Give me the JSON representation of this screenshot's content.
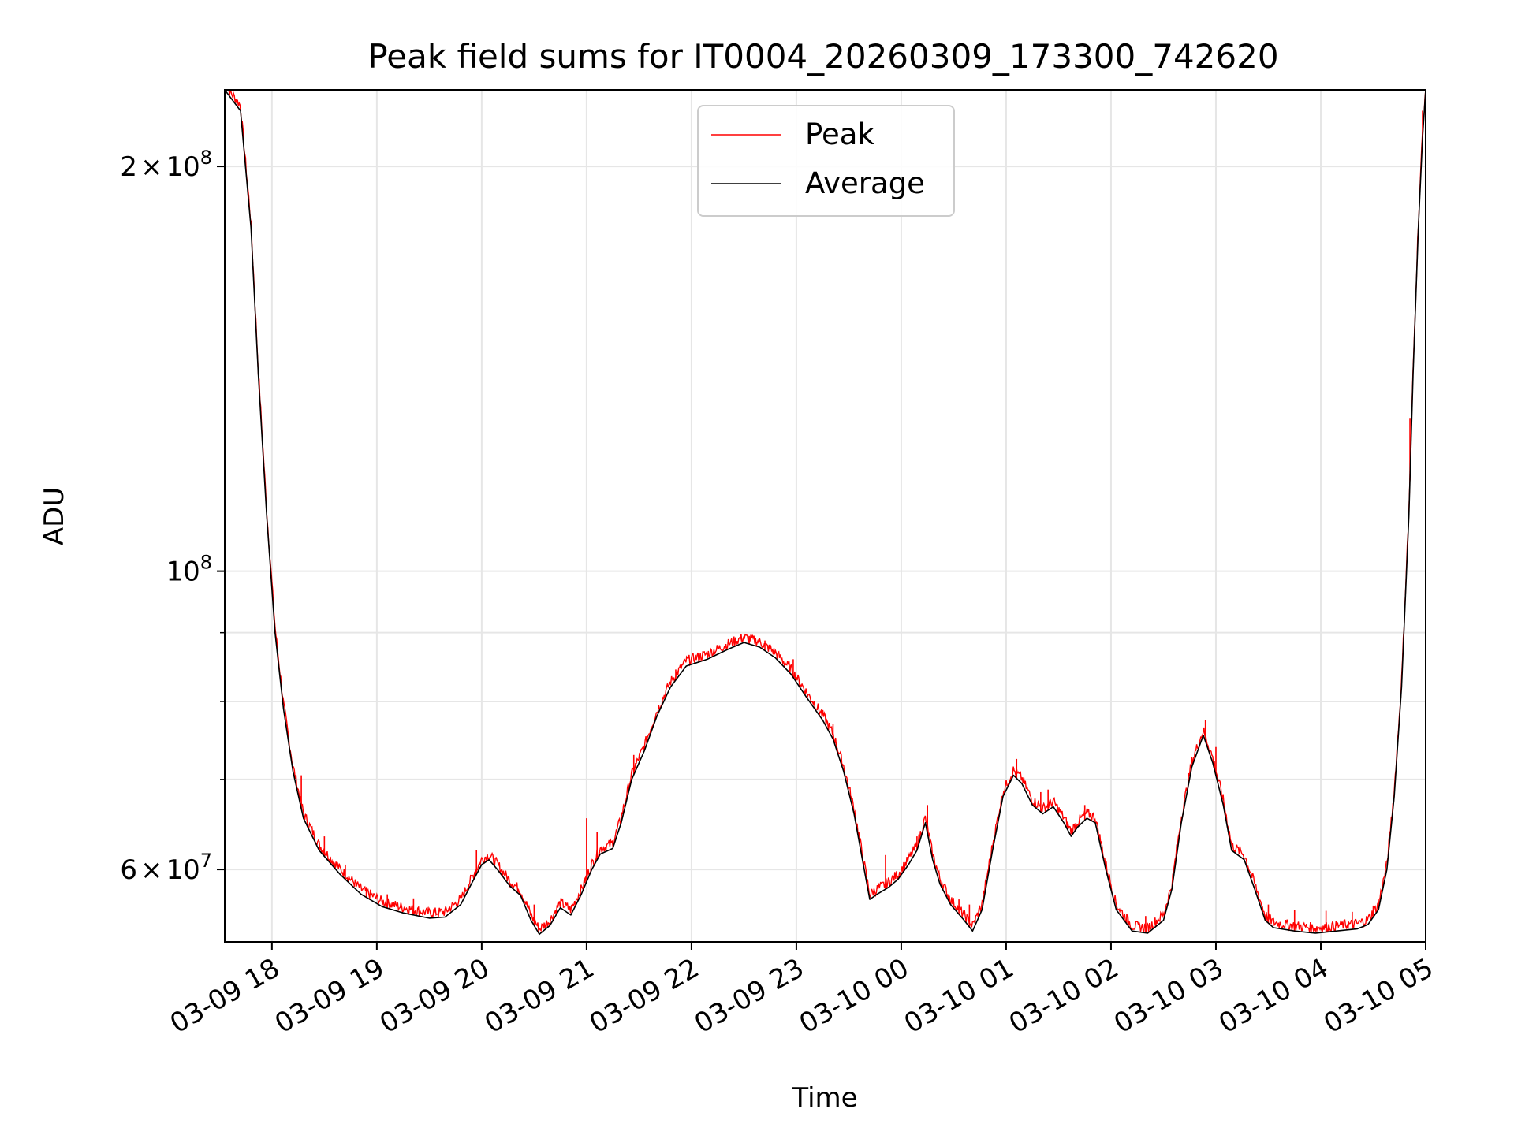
{
  "chart_data": {
    "type": "line",
    "title": "Peak field sums for IT0004_20260309_173300_742620",
    "xlabel": "Time",
    "ylabel": "ADU",
    "yscale": "log",
    "ylim": [
      53000000,
      228000000
    ],
    "x_unit": "hours since 03-09 17:33",
    "xlim": [
      0,
      11.45
    ],
    "grid": true,
    "legend": {
      "position": "upper-center",
      "entries": [
        "Peak",
        "Average"
      ]
    },
    "x_ticks": [
      {
        "value": 0.45,
        "label": "03-09 18"
      },
      {
        "value": 1.45,
        "label": "03-09 19"
      },
      {
        "value": 2.45,
        "label": "03-09 20"
      },
      {
        "value": 3.45,
        "label": "03-09 21"
      },
      {
        "value": 4.45,
        "label": "03-09 22"
      },
      {
        "value": 5.45,
        "label": "03-09 23"
      },
      {
        "value": 6.45,
        "label": "03-10 00"
      },
      {
        "value": 7.45,
        "label": "03-10 01"
      },
      {
        "value": 8.45,
        "label": "03-10 02"
      },
      {
        "value": 9.45,
        "label": "03-10 03"
      },
      {
        "value": 10.45,
        "label": "03-10 04"
      },
      {
        "value": 11.45,
        "label": "03-10 05"
      }
    ],
    "y_ticks_major": [
      {
        "value": 60000000,
        "base": "6",
        "times": "×",
        "exp_base": "10",
        "exp": "7"
      },
      {
        "value": 100000000,
        "base": "",
        "times": "",
        "exp_base": "10",
        "exp": "8"
      },
      {
        "value": 200000000,
        "base": "2",
        "times": "×",
        "exp_base": "10",
        "exp": "8"
      }
    ],
    "y_ticks_minor": [
      70000000,
      80000000,
      90000000
    ],
    "series": [
      {
        "name": "Average",
        "color": "#000000",
        "points": [
          [
            0.0,
            228000000
          ],
          [
            0.15,
            220000000
          ],
          [
            0.25,
            180000000
          ],
          [
            0.32,
            140000000
          ],
          [
            0.4,
            110000000
          ],
          [
            0.48,
            90000000
          ],
          [
            0.56,
            79000000
          ],
          [
            0.65,
            71000000
          ],
          [
            0.75,
            65500000
          ],
          [
            0.9,
            62000000
          ],
          [
            1.1,
            59500000
          ],
          [
            1.3,
            57500000
          ],
          [
            1.5,
            56300000
          ],
          [
            1.7,
            55700000
          ],
          [
            1.95,
            55200000
          ],
          [
            2.1,
            55300000
          ],
          [
            2.25,
            56500000
          ],
          [
            2.35,
            58500000
          ],
          [
            2.45,
            60500000
          ],
          [
            2.52,
            61000000
          ],
          [
            2.6,
            60000000
          ],
          [
            2.72,
            58300000
          ],
          [
            2.82,
            57400000
          ],
          [
            2.92,
            55000000
          ],
          [
            3.0,
            53700000
          ],
          [
            3.1,
            54500000
          ],
          [
            3.2,
            56200000
          ],
          [
            3.3,
            55500000
          ],
          [
            3.4,
            57500000
          ],
          [
            3.5,
            60000000
          ],
          [
            3.58,
            61600000
          ],
          [
            3.7,
            62200000
          ],
          [
            3.78,
            65000000
          ],
          [
            3.88,
            70000000
          ],
          [
            4.0,
            73500000
          ],
          [
            4.12,
            78000000
          ],
          [
            4.25,
            82000000
          ],
          [
            4.4,
            85000000
          ],
          [
            4.6,
            86000000
          ],
          [
            4.8,
            87500000
          ],
          [
            4.95,
            88500000
          ],
          [
            5.1,
            87800000
          ],
          [
            5.25,
            86200000
          ],
          [
            5.4,
            83800000
          ],
          [
            5.55,
            80500000
          ],
          [
            5.7,
            77500000
          ],
          [
            5.8,
            75000000
          ],
          [
            5.9,
            71000000
          ],
          [
            6.0,
            66000000
          ],
          [
            6.08,
            61000000
          ],
          [
            6.15,
            57000000
          ],
          [
            6.22,
            57500000
          ],
          [
            6.33,
            58200000
          ],
          [
            6.42,
            59000000
          ],
          [
            6.52,
            60500000
          ],
          [
            6.6,
            62000000
          ],
          [
            6.68,
            65000000
          ],
          [
            6.75,
            61000000
          ],
          [
            6.82,
            58500000
          ],
          [
            6.92,
            56500000
          ],
          [
            7.05,
            55000000
          ],
          [
            7.13,
            54000000
          ],
          [
            7.22,
            56000000
          ],
          [
            7.32,
            62000000
          ],
          [
            7.42,
            68000000
          ],
          [
            7.52,
            70500000
          ],
          [
            7.6,
            69500000
          ],
          [
            7.7,
            67000000
          ],
          [
            7.8,
            66000000
          ],
          [
            7.9,
            66800000
          ],
          [
            8.0,
            65000000
          ],
          [
            8.07,
            63500000
          ],
          [
            8.13,
            64500000
          ],
          [
            8.22,
            65500000
          ],
          [
            8.3,
            65000000
          ],
          [
            8.4,
            60000000
          ],
          [
            8.5,
            56000000
          ],
          [
            8.65,
            54000000
          ],
          [
            8.8,
            53800000
          ],
          [
            8.95,
            55000000
          ],
          [
            9.03,
            58000000
          ],
          [
            9.12,
            65000000
          ],
          [
            9.22,
            71500000
          ],
          [
            9.33,
            75500000
          ],
          [
            9.42,
            72000000
          ],
          [
            9.52,
            67000000
          ],
          [
            9.6,
            62000000
          ],
          [
            9.72,
            61000000
          ],
          [
            9.82,
            58000000
          ],
          [
            9.92,
            55000000
          ],
          [
            10.0,
            54300000
          ],
          [
            10.2,
            54000000
          ],
          [
            10.4,
            53800000
          ],
          [
            10.6,
            54000000
          ],
          [
            10.8,
            54200000
          ],
          [
            10.9,
            54600000
          ],
          [
            11.0,
            56000000
          ],
          [
            11.08,
            60000000
          ],
          [
            11.15,
            68000000
          ],
          [
            11.22,
            82000000
          ],
          [
            11.29,
            110000000
          ],
          [
            11.33,
            140000000
          ],
          [
            11.38,
            180000000
          ],
          [
            11.42,
            210000000
          ],
          [
            11.45,
            228000000
          ]
        ]
      },
      {
        "name": "Peak",
        "color": "#ff0000",
        "spikes": [
          [
            0.73,
            70500000
          ],
          [
            0.95,
            63500000
          ],
          [
            1.15,
            60500000
          ],
          [
            1.35,
            58200000
          ],
          [
            1.55,
            57500000
          ],
          [
            1.8,
            57100000
          ],
          [
            2.4,
            62000000
          ],
          [
            2.95,
            56500000
          ],
          [
            3.45,
            65500000
          ],
          [
            3.55,
            64000000
          ],
          [
            3.9,
            73000000
          ],
          [
            4.3,
            84500000
          ],
          [
            5.0,
            89500000
          ],
          [
            5.15,
            88800000
          ],
          [
            5.42,
            86000000
          ],
          [
            5.8,
            77000000
          ],
          [
            6.3,
            61500000
          ],
          [
            6.6,
            63500000
          ],
          [
            6.7,
            67000000
          ],
          [
            7.0,
            57000000
          ],
          [
            7.1,
            56500000
          ],
          [
            7.55,
            72500000
          ],
          [
            7.78,
            68500000
          ],
          [
            7.85,
            68800000
          ],
          [
            8.2,
            67000000
          ],
          [
            8.6,
            55600000
          ],
          [
            8.78,
            55400000
          ],
          [
            9.35,
            77500000
          ],
          [
            9.45,
            74000000
          ],
          [
            9.95,
            56500000
          ],
          [
            10.2,
            56000000
          ],
          [
            10.5,
            55900000
          ],
          [
            10.75,
            55800000
          ],
          [
            10.95,
            56400000
          ],
          [
            11.3,
            130000000
          ],
          [
            11.42,
            220000000
          ]
        ]
      }
    ]
  }
}
